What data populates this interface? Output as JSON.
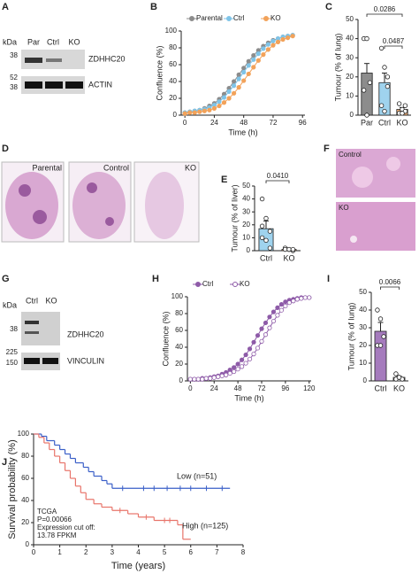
{
  "blot_a": {
    "panel": "A",
    "unit": "kDa",
    "lanes": [
      "Par",
      "Ctrl",
      "KO"
    ],
    "markers": [
      38,
      52,
      38
    ],
    "proteins": [
      "ZDHHC20",
      "ACTIN"
    ]
  },
  "histology_d": {
    "panel": "D",
    "labels": [
      "Parental",
      "Control",
      "KO"
    ]
  },
  "histology_f": {
    "panel": "F",
    "labels": [
      "Control",
      "KO"
    ]
  },
  "blot_g": {
    "panel": "G",
    "unit": "kDa",
    "lanes": [
      "Ctrl",
      "KO"
    ],
    "markers": [
      38,
      225,
      150
    ],
    "proteins": [
      "ZDHHC20",
      "VINCULIN"
    ]
  },
  "chart_data": [
    {
      "panel": "B",
      "type": "line",
      "xlabel": "Time (h)",
      "ylabel": "Confluence (%)",
      "x": [
        0,
        4,
        8,
        12,
        16,
        20,
        24,
        28,
        32,
        36,
        40,
        44,
        48,
        52,
        56,
        60,
        64,
        68,
        72,
        76,
        80,
        84,
        88
      ],
      "series": [
        {
          "name": "Parental",
          "color": "#8c8c8c",
          "marker_fill": "#8c8c8c",
          "values": [
            3,
            4,
            5,
            6,
            8,
            11,
            14,
            19,
            25,
            32,
            40,
            48,
            56,
            64,
            71,
            77,
            82,
            86,
            89,
            91,
            93,
            94,
            95
          ]
        },
        {
          "name": "Ctrl",
          "color": "#7fc4e8",
          "marker_fill": "#7fc4e8",
          "values": [
            3,
            4,
            5,
            6,
            7,
            9,
            12,
            16,
            21,
            28,
            35,
            43,
            51,
            59,
            66,
            73,
            79,
            84,
            88,
            91,
            93,
            94,
            95
          ]
        },
        {
          "name": "KO",
          "color": "#f2a25a",
          "marker_fill": "#f2a25a",
          "values": [
            2,
            3,
            3,
            4,
            5,
            6,
            8,
            11,
            15,
            20,
            26,
            33,
            41,
            49,
            57,
            65,
            72,
            78,
            83,
            87,
            90,
            92,
            94
          ]
        }
      ],
      "xlim": [
        -3,
        98
      ],
      "xticks": [
        0,
        24,
        48,
        72,
        96
      ],
      "ylim": [
        0,
        100
      ],
      "yticks": [
        0,
        20,
        40,
        60,
        80,
        100
      ],
      "legend": "top"
    },
    {
      "panel": "C",
      "type": "bar",
      "ylabel": "Tumour (% of lung)",
      "categories": [
        "Par",
        "Ctrl",
        "KO"
      ],
      "values": [
        22,
        17,
        3
      ],
      "errors": [
        5,
        5,
        1
      ],
      "colors": [
        "#8c8c8c",
        "#9fd3ee",
        "#f4b27a"
      ],
      "points": [
        [
          40,
          40,
          17,
          13,
          0
        ],
        [
          35,
          25,
          15,
          5,
          2,
          20
        ],
        [
          6,
          3,
          2,
          1,
          1,
          5
        ]
      ],
      "ylim": [
        0,
        50
      ],
      "yticks": [
        0,
        10,
        20,
        30,
        40,
        50
      ],
      "p_values": [
        "0.0286",
        "0.0487"
      ]
    },
    {
      "panel": "E",
      "type": "bar",
      "ylabel": "Tumour (% of liver)",
      "categories": [
        "Ctrl",
        "KO"
      ],
      "values": [
        17,
        1
      ],
      "errors": [
        6,
        0.5
      ],
      "colors": [
        "#9fd3ee",
        "#f4b27a"
      ],
      "points": [
        [
          40,
          25,
          15,
          10,
          8,
          2,
          19
        ],
        [
          2,
          1,
          0,
          1,
          1,
          1
        ]
      ],
      "ylim": [
        0,
        50
      ],
      "yticks": [
        0,
        10,
        20,
        30,
        40,
        50
      ],
      "p_values": [
        "0.0410"
      ]
    },
    {
      "panel": "H",
      "type": "line",
      "xlabel": "Time (h)",
      "ylabel": "Confluence (%)",
      "x": [
        0,
        4,
        8,
        12,
        16,
        20,
        24,
        28,
        32,
        36,
        40,
        44,
        48,
        52,
        56,
        60,
        64,
        68,
        72,
        76,
        80,
        84,
        88,
        92,
        96,
        100,
        104,
        108,
        112,
        116,
        120
      ],
      "series": [
        {
          "name": "Ctrl",
          "color": "#8e5ba8",
          "marker_fill": "#8e5ba8",
          "values": [
            2,
            2,
            2,
            3,
            3,
            4,
            5,
            6,
            8,
            10,
            13,
            16,
            20,
            25,
            31,
            38,
            46,
            54,
            62,
            69,
            76,
            82,
            87,
            91,
            94,
            96,
            97,
            98,
            99,
            99,
            99
          ]
        },
        {
          "name": "KO",
          "color": "#8e5ba8",
          "marker_fill": "#ffffff",
          "values": [
            2,
            2,
            2,
            2,
            3,
            3,
            4,
            5,
            6,
            7,
            9,
            11,
            14,
            17,
            21,
            26,
            32,
            39,
            47,
            55,
            63,
            71,
            78,
            84,
            89,
            93,
            95,
            97,
            98,
            99,
            99
          ]
        }
      ],
      "xlim": [
        -3,
        122
      ],
      "xticks": [
        0,
        24,
        48,
        72,
        96,
        120
      ],
      "ylim": [
        0,
        100
      ],
      "yticks": [
        0,
        20,
        40,
        60,
        80,
        100
      ],
      "legend": "top"
    },
    {
      "panel": "I",
      "type": "bar",
      "ylabel": "Tumour (% of lung)",
      "categories": [
        "Ctrl",
        "KO"
      ],
      "values": [
        28,
        2
      ],
      "errors": [
        5,
        0.7
      ],
      "colors": [
        "#a57bbd",
        "#ffffff"
      ],
      "points": [
        [
          40,
          35,
          25,
          20,
          20
        ],
        [
          4,
          2,
          1,
          1,
          2
        ]
      ],
      "ylim": [
        0,
        50
      ],
      "yticks": [
        0,
        10,
        20,
        30,
        40,
        50
      ],
      "p_values": [
        "0.0066"
      ]
    },
    {
      "panel": "J",
      "type": "survival",
      "xlabel": "Time (years)",
      "ylabel": "Survival probability (%)",
      "xlim": [
        0,
        8
      ],
      "xticks": [
        0,
        1,
        2,
        3,
        4,
        5,
        6,
        7,
        8
      ],
      "ylim": [
        0,
        100
      ],
      "yticks": [
        0,
        20,
        40,
        60,
        80,
        100
      ],
      "series": [
        {
          "name": "Low (n=51)",
          "color": "#3a5fc8",
          "x": [
            0,
            0.3,
            0.5,
            0.8,
            1.0,
            1.2,
            1.4,
            1.6,
            1.9,
            2.1,
            2.3,
            2.6,
            2.8,
            3.0,
            7.5
          ],
          "values": [
            100,
            98,
            94,
            90,
            86,
            82,
            78,
            74,
            70,
            66,
            62,
            58,
            55,
            51,
            51
          ],
          "censored": [
            3.4,
            4.2,
            4.6,
            5.1,
            5.6,
            6.0,
            6.6,
            7.2
          ]
        },
        {
          "name": "High (n=125)",
          "color": "#e8746a",
          "x": [
            0,
            0.2,
            0.4,
            0.6,
            0.8,
            1.0,
            1.2,
            1.4,
            1.6,
            1.8,
            2.0,
            2.3,
            2.6,
            3.0,
            3.6,
            4.0,
            4.6,
            5.5,
            5.7,
            6.0
          ],
          "values": [
            100,
            97,
            92,
            86,
            80,
            74,
            67,
            60,
            53,
            47,
            41,
            37,
            34,
            31,
            28,
            25,
            22,
            18,
            5,
            5
          ],
          "censored": [
            3.3,
            4.3,
            5.0,
            5.2
          ]
        }
      ],
      "annotations": [
        "TCGA",
        "P=0.00066",
        "Expression cut off:",
        "13.78 FPKM"
      ]
    }
  ]
}
